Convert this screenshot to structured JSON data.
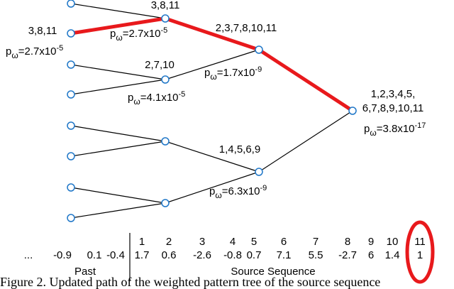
{
  "annotations": [
    "3,8,11",
    "3,8,11",
    "2,3,7,8,10,11",
    "2,7,10",
    "1,2,3,4,5,",
    "6,7,8,9,10,11",
    "1,4,5,6,9"
  ],
  "probabilities": [
    {
      "base": "p",
      "sub": "ω",
      "mantissa": "=2.7x10",
      "exp": "-5"
    },
    {
      "base": "p",
      "sub": "ω",
      "mantissa": "=2.7x10",
      "exp": "-5"
    },
    {
      "base": "p",
      "sub": "ω",
      "mantissa": "=1.7x10",
      "exp": "-9"
    },
    {
      "base": "p",
      "sub": "ω",
      "mantissa": "=4.1x10",
      "exp": "-5"
    },
    {
      "base": "p",
      "sub": "ω",
      "mantissa": "=3.8x10",
      "exp": "-17"
    },
    {
      "base": "p",
      "sub": "ω",
      "mantissa": "=6.3x10",
      "exp": "-9"
    }
  ],
  "sequence": {
    "ellipsis": "...",
    "past_values": [
      "-0.9",
      "0.1",
      "-0.4"
    ],
    "indices": [
      1,
      2,
      3,
      4,
      5,
      6,
      7,
      8,
      9,
      10,
      11
    ],
    "source_values": [
      "1.7",
      "0.6",
      "-2.6",
      "-0.8",
      "0.7",
      "7.1",
      "5.5",
      "-2.7",
      "6",
      "1.4",
      "1"
    ],
    "past_label": "Past",
    "source_label": "Source Sequence"
  },
  "caption": "Figure 2.  Updated path of the weighted pattern tree of the source sequence"
}
